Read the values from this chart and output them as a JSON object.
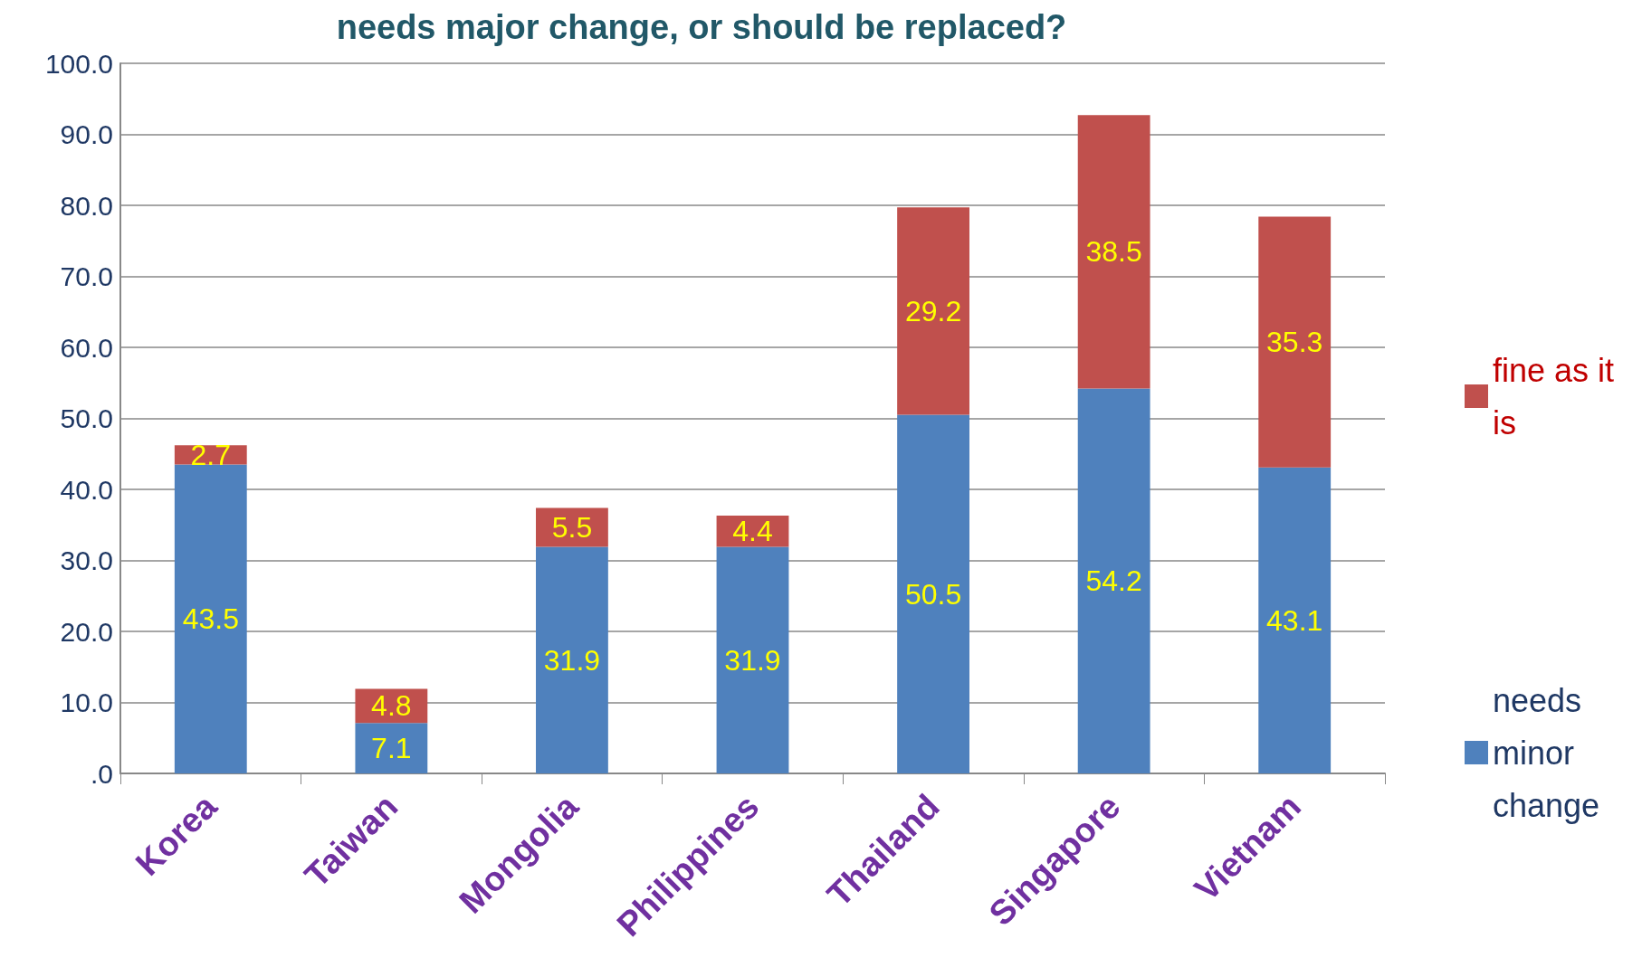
{
  "chart_data": {
    "type": "bar",
    "title": "needs major change, or should be replaced?",
    "stacked": true,
    "categories": [
      "Korea",
      "Taiwan",
      "Mongolia",
      "Philippines",
      "Thailand",
      "Singapore",
      "Vietnam"
    ],
    "series": [
      {
        "name": "needs minor change",
        "color": "#4f81bd",
        "values": [
          43.5,
          7.1,
          31.9,
          31.9,
          50.5,
          54.2,
          43.1
        ]
      },
      {
        "name": "fine as it is",
        "color": "#c0504d",
        "values": [
          2.7,
          4.8,
          5.5,
          4.4,
          29.2,
          38.5,
          35.3
        ]
      }
    ],
    "ylim": [
      0,
      100
    ],
    "yticks": [
      {
        "value": 0,
        "label": ".0"
      },
      {
        "value": 10,
        "label": "10.0"
      },
      {
        "value": 20,
        "label": "20.0"
      },
      {
        "value": 30,
        "label": "30.0"
      },
      {
        "value": 40,
        "label": "40.0"
      },
      {
        "value": 50,
        "label": "50.0"
      },
      {
        "value": 60,
        "label": "60.0"
      },
      {
        "value": 70,
        "label": "70.0"
      },
      {
        "value": 80,
        "label": "80.0"
      },
      {
        "value": 90,
        "label": "90.0"
      },
      {
        "value": 100,
        "label": "100.0"
      }
    ],
    "grid": "y",
    "legend": "right",
    "data_labels": true
  }
}
